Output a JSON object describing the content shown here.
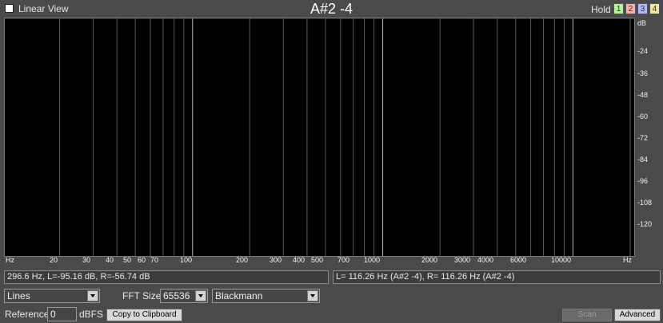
{
  "header": {
    "linear_view_label": "Linear View",
    "title": "A#2 -4",
    "hold_label": "Hold",
    "hold_buttons": [
      {
        "label": "1",
        "color": "#b9f0a0"
      },
      {
        "label": "2",
        "color": "#f6b0a8"
      },
      {
        "label": "3",
        "color": "#b0b8f6"
      },
      {
        "label": "4",
        "color": "#f0e6a0"
      }
    ]
  },
  "plot": {
    "y_unit": "dB",
    "y_ticks": [
      "-24",
      "-36",
      "-48",
      "-60",
      "-72",
      "-84",
      "-96",
      "-108",
      "-120"
    ],
    "x_unit_left": "Hz",
    "x_unit_right": "Hz",
    "x_ticks": [
      "20",
      "30",
      "40",
      "50",
      "60",
      "70",
      "100",
      "200",
      "300",
      "400",
      "500",
      "700",
      "1000",
      "2000",
      "3000",
      "4000",
      "6000",
      "10000"
    ],
    "colors": {
      "blue": "#3a3af0",
      "violet": "#a09cf5",
      "salmon": "#ff8c80",
      "green": "#a8ff9a"
    }
  },
  "status": {
    "cursor_readout": "296.6 Hz, L=-95.16 dB, R=-56.74 dB",
    "peak_readout": "L= 116.26 Hz (A#2 -4), R= 116.26 Hz (A#2 -4)"
  },
  "controls": {
    "display_mode": "Lines",
    "fft_size_label": "FFT Size",
    "fft_size": "65536",
    "window": "Blackmann",
    "reference_label": "Reference",
    "reference_value": "0",
    "reference_unit": "dBFS",
    "copy_button": "Copy to Clipboard",
    "scan_button": "Scan",
    "advanced_button": "Advanced"
  }
}
